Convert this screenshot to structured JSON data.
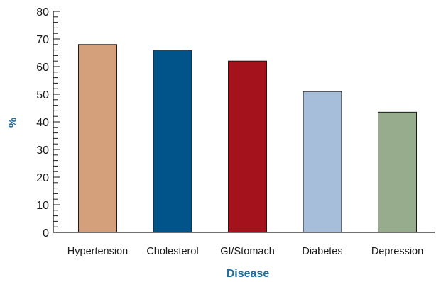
{
  "chart_data": {
    "type": "bar",
    "title": "",
    "xlabel": "Disease",
    "ylabel": "%",
    "ylim": [
      0,
      80
    ],
    "yticks": [
      0,
      10,
      20,
      30,
      40,
      50,
      60,
      70,
      80
    ],
    "grid": false,
    "categories": [
      "Hypertension",
      "Cholesterol",
      "GI/Stomach",
      "Diabetes",
      "Depression"
    ],
    "values": [
      68,
      66,
      62,
      51,
      43.5
    ],
    "colors": [
      "#d4a07c",
      "#00548a",
      "#a4121b",
      "#a7bedb",
      "#97ab8d"
    ]
  }
}
